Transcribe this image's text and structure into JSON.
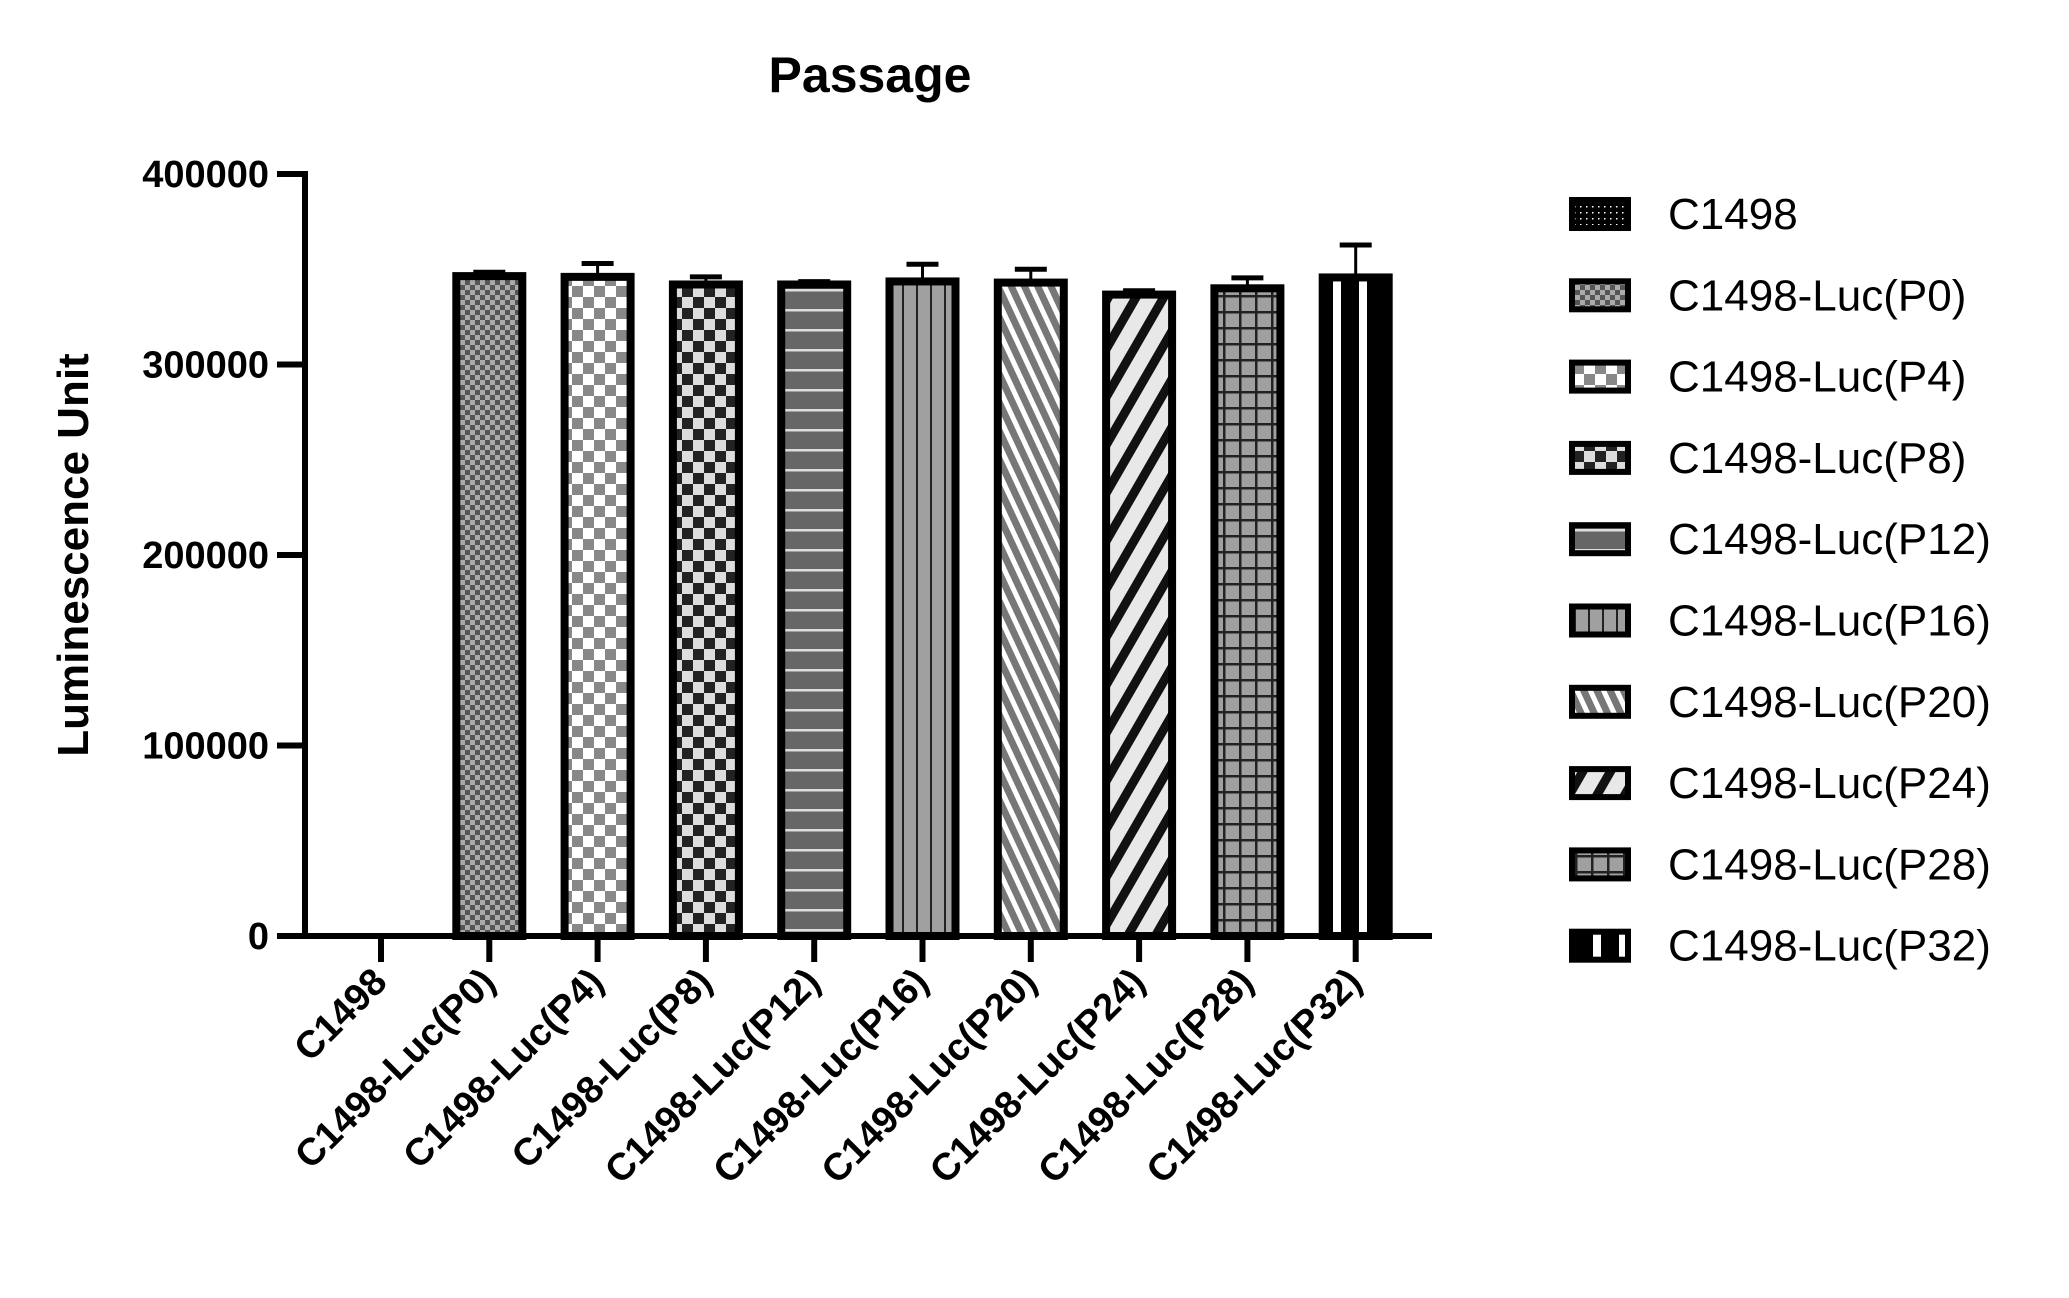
{
  "chart_data": {
    "type": "bar",
    "title": "Passage",
    "xlabel": "",
    "ylabel": "Luminescence Unit",
    "ylim": [
      0,
      400000
    ],
    "yticks": [
      "0",
      "100000",
      "200000",
      "300000",
      "400000"
    ],
    "grid": false,
    "legend_position": "right",
    "categories": [
      "C1498",
      "C1498-Luc(P0)",
      "C1498-Luc(P4)",
      "C1498-Luc(P8)",
      "C1498-Luc(P12)",
      "C1498-Luc(P16)",
      "C1498-Luc(P20)",
      "C1498-Luc(P24)",
      "C1498-Luc(P28)",
      "C1498-Luc(P32)"
    ],
    "values": [
      0,
      346400,
      346000,
      342000,
      342000,
      343600,
      343000,
      336700,
      340000,
      345700
    ],
    "error_bars": [
      0,
      2000,
      7000,
      4000,
      1500,
      9000,
      7000,
      2000,
      5500,
      17000
    ],
    "patterns": [
      "dots",
      "fine-checker",
      "checker-light",
      "checker-dark",
      "horizontal-lines",
      "vertical-lines",
      "diagonal-lines",
      "bold-diagonal",
      "grid",
      "vertical-bars"
    ],
    "legend": [
      "C1498",
      "C1498-Luc(P0)",
      "C1498-Luc(P4)",
      "C1498-Luc(P8)",
      "C1498-Luc(P12)",
      "C1498-Luc(P16)",
      "C1498-Luc(P20)",
      "C1498-Luc(P24)",
      "C1498-Luc(P28)",
      "C1498-Luc(P32)"
    ]
  }
}
